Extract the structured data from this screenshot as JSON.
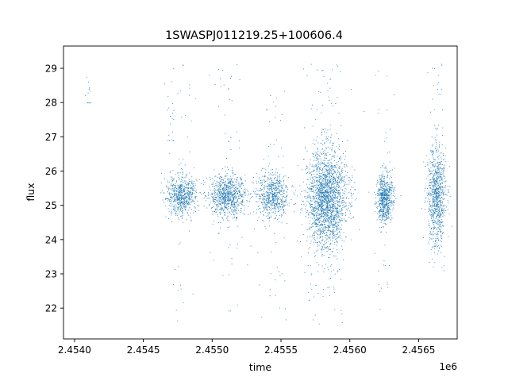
{
  "chart_data": {
    "type": "scatter",
    "title": "1SWASPJ011219.25+100606.4",
    "xlabel": "time",
    "ylabel": "flux",
    "x_offset_label": "1e6",
    "x_ticks": [
      2.454,
      2.4545,
      2.455,
      2.4555,
      2.456,
      2.4565
    ],
    "x_tick_labels": [
      "2.4540",
      "2.4545",
      "2.4550",
      "2.4555",
      "2.4560",
      "2.4565"
    ],
    "y_ticks": [
      22,
      23,
      24,
      25,
      26,
      27,
      28,
      29
    ],
    "y_tick_labels": [
      "22",
      "23",
      "24",
      "25",
      "26",
      "27",
      "28",
      "29"
    ],
    "xlim": [
      2.45392,
      2.45678
    ],
    "ylim": [
      21.1,
      29.65
    ],
    "grid": false,
    "marker_color": "#1f77b4",
    "series": [
      {
        "x_unit_note_shown_on_axis": "1e6",
        "clusters": [
          {
            "x_center": 2.4541,
            "x_spread": 2e-05,
            "y_center": 28.3,
            "y_spread": 0.35,
            "y_min": 28.0,
            "y_max": 29.2,
            "count": 12
          },
          {
            "x_center": 2.4547,
            "x_spread": 3e-05,
            "y_center": 27.2,
            "y_spread": 0.6,
            "y_min": 26.9,
            "y_max": 29.2,
            "count": 18
          },
          {
            "x_center": 2.45477,
            "x_spread": 0.0001,
            "y_center": 25.3,
            "y_spread": 0.28,
            "y_min": 21.5,
            "y_max": 29.2,
            "count": 700
          },
          {
            "x_center": 2.45511,
            "x_spread": 0.00012,
            "y_center": 25.3,
            "y_spread": 0.3,
            "y_min": 21.9,
            "y_max": 29.2,
            "count": 900
          },
          {
            "x_center": 2.45544,
            "x_spread": 0.00011,
            "y_center": 25.3,
            "y_spread": 0.32,
            "y_min": 21.5,
            "y_max": 28.6,
            "count": 700
          },
          {
            "x_center": 2.45583,
            "x_spread": 0.00013,
            "y_center": 25.2,
            "y_spread": 0.7,
            "y_min": 21.4,
            "y_max": 29.2,
            "count": 2200
          },
          {
            "x_center": 2.45625,
            "x_spread": 5e-05,
            "y_center": 25.2,
            "y_spread": 0.35,
            "y_min": 21.6,
            "y_max": 29.0,
            "count": 700
          },
          {
            "x_center": 2.45663,
            "x_spread": 6e-05,
            "y_center": 25.3,
            "y_spread": 0.7,
            "y_min": 23.1,
            "y_max": 29.2,
            "count": 900
          }
        ]
      }
    ]
  }
}
